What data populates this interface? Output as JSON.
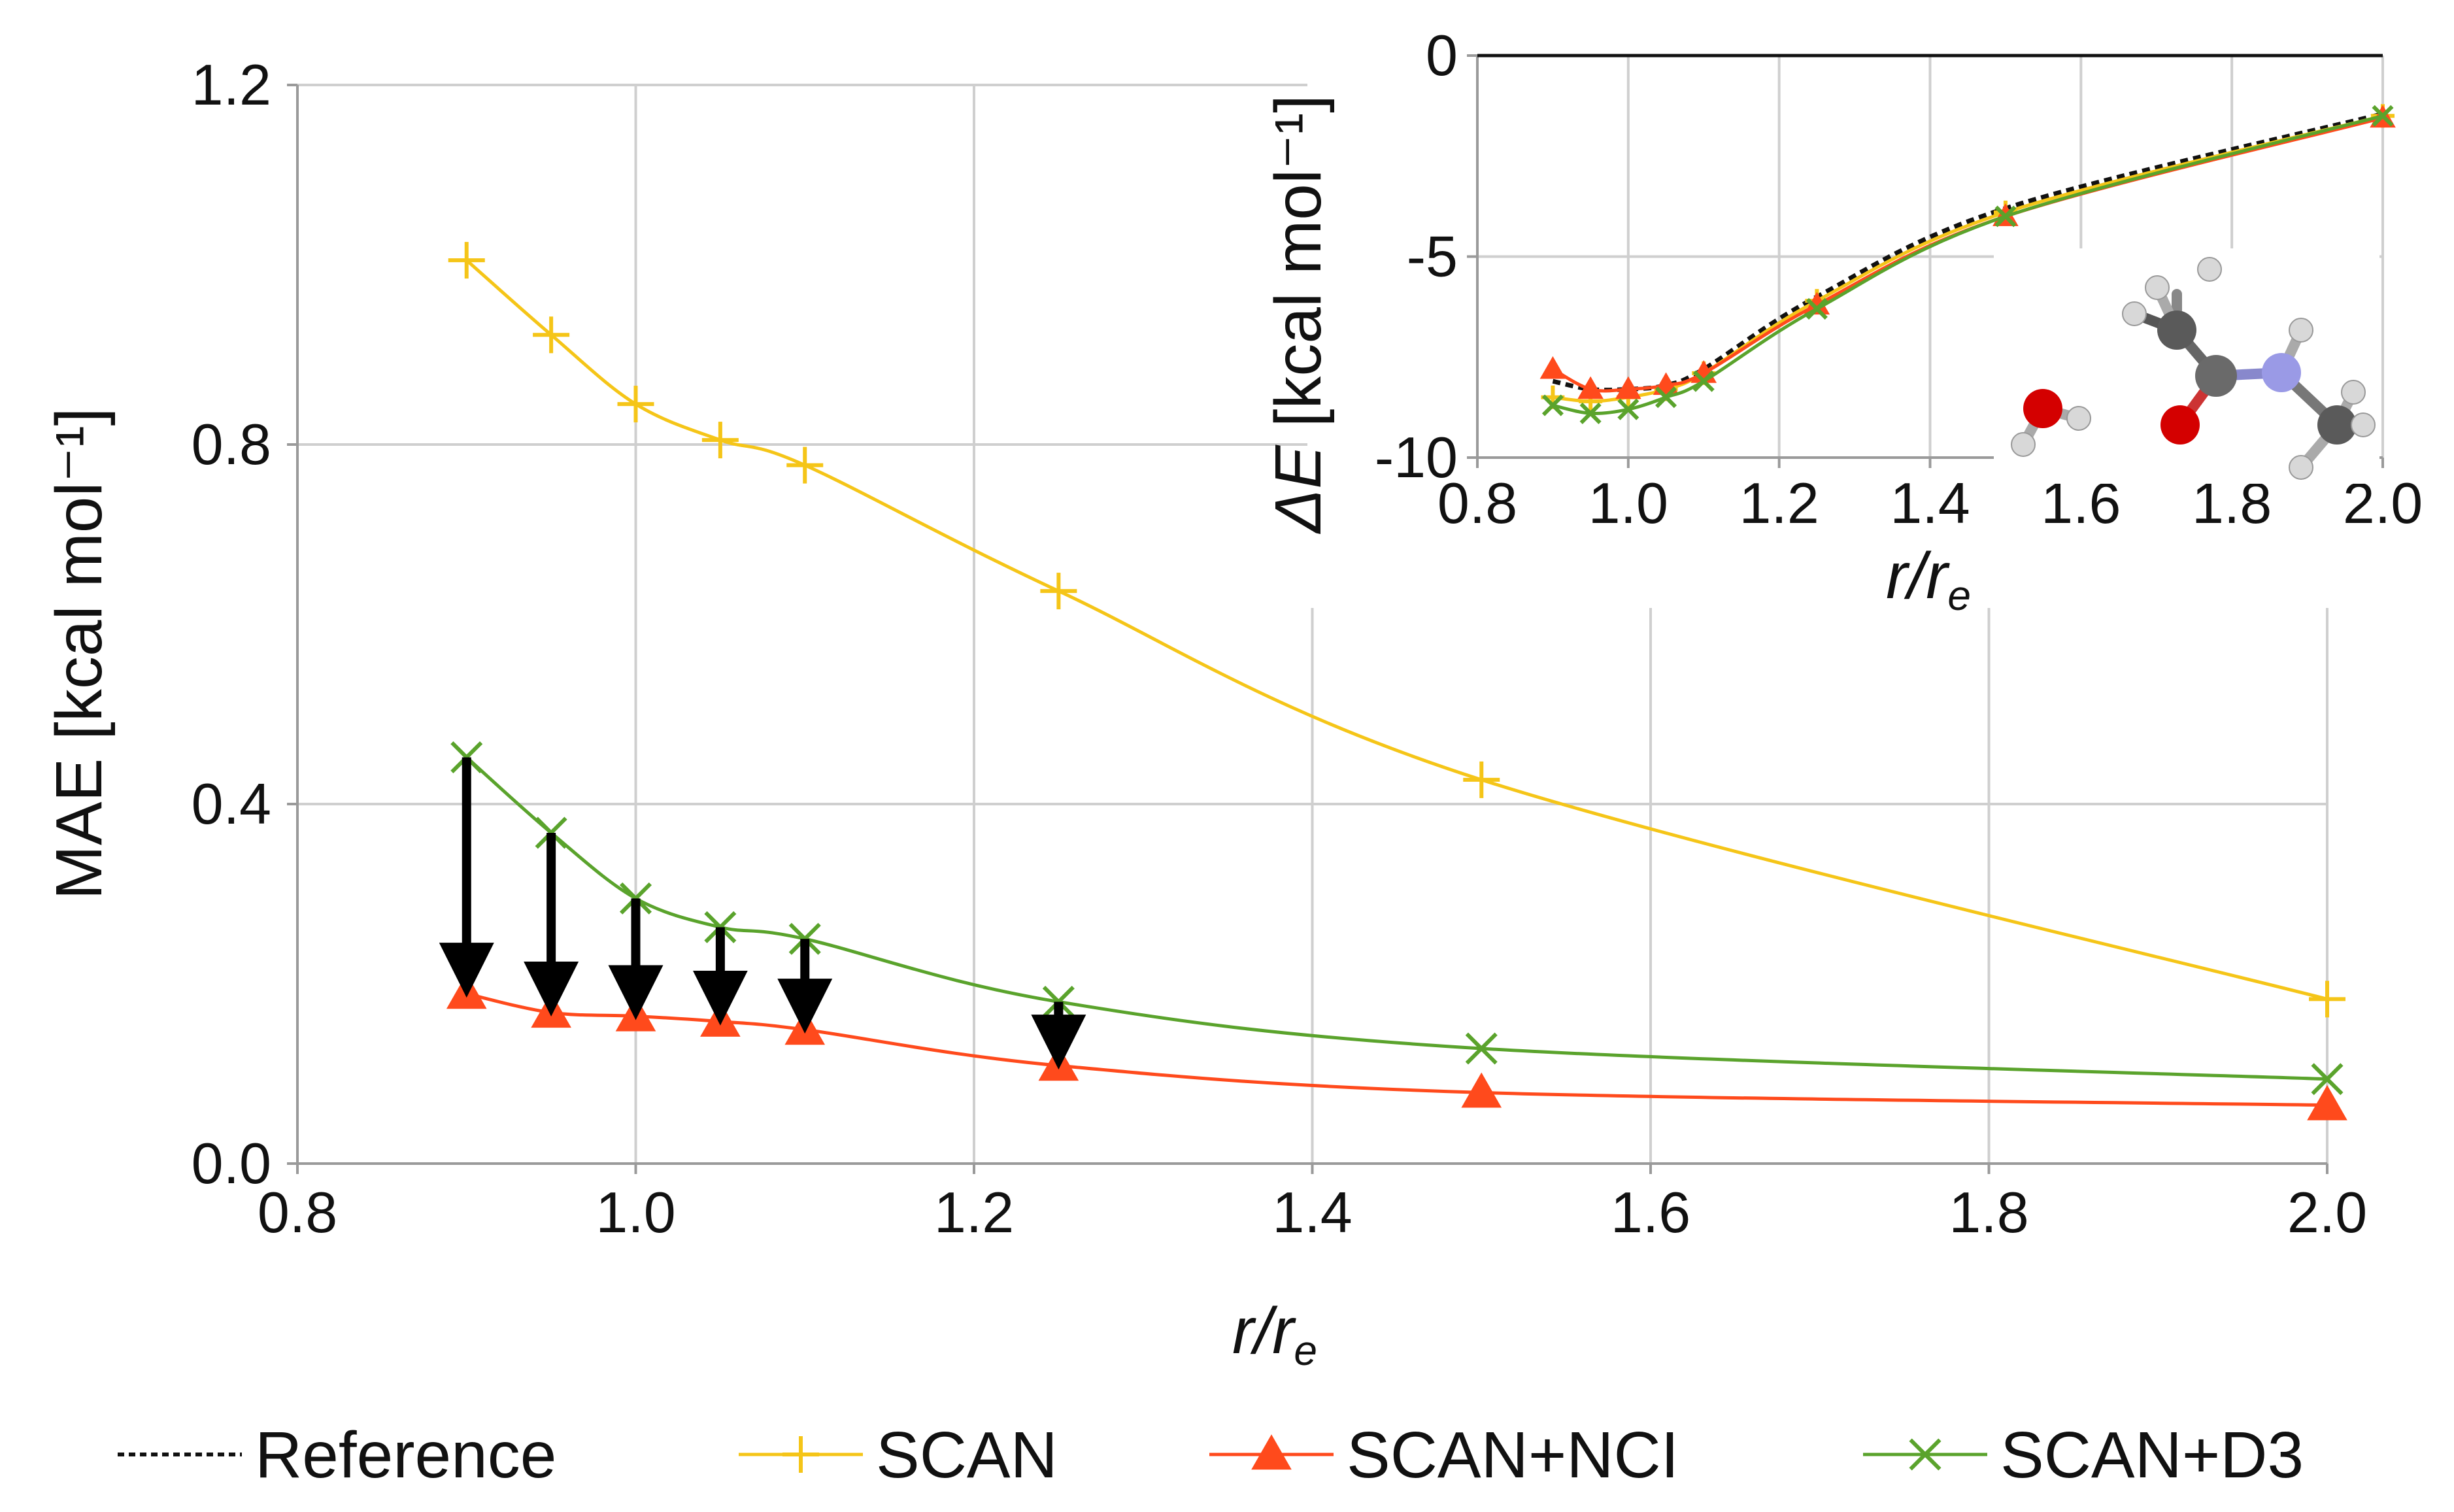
{
  "chart_data": [
    {
      "type": "line",
      "role": "main",
      "xlabel": "r/r_e",
      "xlabel_main": "r/r",
      "xlabel_sub": "e",
      "ylabel": "MAE [kcal mol⁻¹]",
      "xlim": [
        0.8,
        2.0
      ],
      "ylim": [
        0.0,
        1.2
      ],
      "xticks": [
        "0.8",
        "1.0",
        "1.2",
        "1.4",
        "1.6",
        "1.8",
        "2.0"
      ],
      "yticks": [
        "0.0",
        "0.4",
        "0.8",
        "1.2"
      ],
      "grid": true,
      "x": [
        0.9,
        0.95,
        1.0,
        1.05,
        1.1,
        1.25,
        1.5,
        2.0
      ],
      "series": [
        {
          "name": "SCAN",
          "color": "#f5c518",
          "marker": "plus",
          "values": [
            1.005,
            0.922,
            0.845,
            0.805,
            0.777,
            0.637,
            0.427,
            0.183
          ]
        },
        {
          "name": "SCAN+NCI",
          "color": "#ff4a1c",
          "marker": "triangle",
          "values": [
            0.189,
            0.168,
            0.164,
            0.158,
            0.149,
            0.109,
            0.079,
            0.065
          ]
        },
        {
          "name": "SCAN+D3",
          "color": "#5aa32c",
          "marker": "x",
          "values": [
            0.452,
            0.368,
            0.295,
            0.263,
            0.25,
            0.18,
            0.128,
            0.094
          ]
        }
      ],
      "annotations": "Black arrows from SCAN+D3 down to SCAN+NCI at r/r_e = 0.90, 0.95, 1.00, 1.05, 1.10, 1.25"
    },
    {
      "type": "line",
      "role": "inset",
      "xlabel": "r/r_e",
      "xlabel_main": "r/r",
      "xlabel_sub": "e",
      "ylabel": "ΔE [kcal mol⁻¹]",
      "ylabel_prefix": "Δ",
      "ylabel_var": "E",
      "ylabel_rest": " [kcal mol⁻¹]",
      "xlim": [
        0.8,
        2.0
      ],
      "ylim": [
        -10,
        0
      ],
      "xticks": [
        "0.8",
        "1.0",
        "1.2",
        "1.4",
        "1.6",
        "1.8",
        "2.0"
      ],
      "yticks": [
        "-10",
        "-5",
        "0"
      ],
      "grid": true,
      "x": [
        0.9,
        0.95,
        1.0,
        1.05,
        1.1,
        1.25,
        1.5,
        2.0
      ],
      "series": [
        {
          "name": "Reference",
          "color": "#111111",
          "marker": "none",
          "dashed": true,
          "values": [
            -8.1,
            -8.3,
            -8.3,
            -8.2,
            -7.8,
            -6.0,
            -3.8,
            -1.45
          ]
        },
        {
          "name": "SCAN",
          "color": "#f5c518",
          "marker": "plus",
          "values": [
            -8.5,
            -8.6,
            -8.5,
            -8.3,
            -7.9,
            -6.1,
            -3.9,
            -1.5
          ]
        },
        {
          "name": "SCAN+NCI",
          "color": "#ff4a1c",
          "marker": "triangle",
          "values": [
            -7.8,
            -8.3,
            -8.3,
            -8.2,
            -7.9,
            -6.2,
            -4.0,
            -1.55
          ]
        },
        {
          "name": "SCAN+D3",
          "color": "#5aa32c",
          "marker": "x",
          "values": [
            -8.7,
            -8.9,
            -8.8,
            -8.5,
            -8.1,
            -6.3,
            -4.0,
            -1.5
          ]
        }
      ]
    }
  ],
  "legend": [
    {
      "label": "Reference",
      "color": "#111111",
      "marker": "none",
      "dashed": true
    },
    {
      "label": "SCAN",
      "color": "#f5c518",
      "marker": "plus"
    },
    {
      "label": "SCAN+NCI",
      "color": "#ff4a1c",
      "marker": "triangle"
    },
    {
      "label": "SCAN+D3",
      "color": "#5aa32c",
      "marker": "x"
    }
  ],
  "molecule_icon": "water-and-n-methylacetamide-molecule"
}
